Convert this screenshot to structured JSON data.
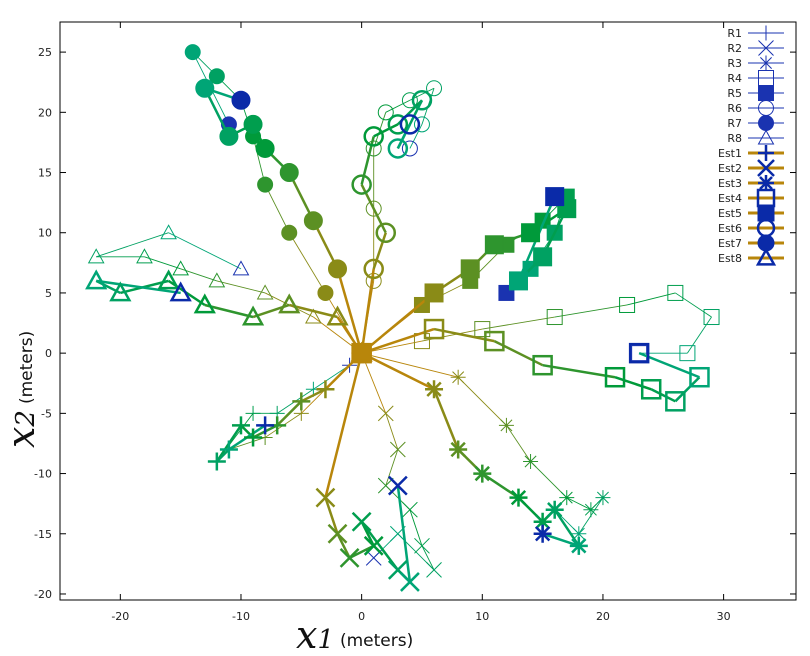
{
  "chart_data": {
    "type": "line",
    "title": "",
    "xlabel": {
      "symbol": "x",
      "subscript": "1",
      "unit": "(meters)"
    },
    "ylabel": {
      "symbol": "x",
      "subscript": "2",
      "unit": "(meters)"
    },
    "xlim": [
      -25,
      36
    ],
    "ylim": [
      -20.5,
      27.5
    ],
    "xticks": [
      -20,
      -10,
      0,
      10,
      20,
      30
    ],
    "yticks": [
      -20,
      -15,
      -10,
      -5,
      0,
      5,
      10,
      15,
      20,
      25
    ],
    "grid": false,
    "legend_position": "top-right",
    "colors": {
      "blue": "#1a33b0",
      "navy": "#0a2aa8",
      "gold": "#b8860b",
      "green": "#009a3a",
      "teal": "#00a88a"
    },
    "series": [
      {
        "name": "R1",
        "marker": "plus",
        "points": [
          [
            0,
            0
          ],
          [
            -5,
            -5
          ],
          [
            -8,
            -7
          ],
          [
            -11,
            -8
          ],
          [
            -12,
            -9
          ],
          [
            -9,
            -5
          ],
          [
            -7,
            -5
          ],
          [
            -4,
            -3
          ],
          [
            -1,
            -1
          ]
        ]
      },
      {
        "name": "R2",
        "marker": "x",
        "points": [
          [
            0,
            0
          ],
          [
            2,
            -5
          ],
          [
            3,
            -8
          ],
          [
            2,
            -11
          ],
          [
            4,
            -13
          ],
          [
            5,
            -16
          ],
          [
            6,
            -18
          ],
          [
            3,
            -15
          ],
          [
            1,
            -17
          ]
        ]
      },
      {
        "name": "R3",
        "marker": "star",
        "points": [
          [
            0,
            0
          ],
          [
            8,
            -2
          ],
          [
            12,
            -6
          ],
          [
            14,
            -9
          ],
          [
            17,
            -12
          ],
          [
            19,
            -13
          ],
          [
            20,
            -12
          ],
          [
            18,
            -15
          ],
          [
            16,
            -13
          ]
        ]
      },
      {
        "name": "R4",
        "marker": "square",
        "points": [
          [
            0,
            0
          ],
          [
            5,
            1
          ],
          [
            10,
            2
          ],
          [
            16,
            3
          ],
          [
            22,
            4
          ],
          [
            26,
            5
          ],
          [
            29,
            3
          ],
          [
            27,
            0
          ],
          [
            23,
            0
          ]
        ]
      },
      {
        "name": "R5",
        "marker": "filled-square",
        "points": [
          [
            0,
            0
          ],
          [
            5,
            4
          ],
          [
            9,
            6
          ],
          [
            12,
            9
          ],
          [
            15,
            11
          ],
          [
            17,
            13
          ],
          [
            16,
            10
          ],
          [
            14,
            7
          ],
          [
            12,
            5
          ]
        ]
      },
      {
        "name": "R6",
        "marker": "circle",
        "points": [
          [
            0,
            0
          ],
          [
            1,
            6
          ],
          [
            1,
            12
          ],
          [
            1,
            17
          ],
          [
            2,
            20
          ],
          [
            4,
            21
          ],
          [
            6,
            22
          ],
          [
            5,
            19
          ],
          [
            4,
            17
          ]
        ]
      },
      {
        "name": "R7",
        "marker": "filled-circle",
        "points": [
          [
            0,
            0
          ],
          [
            -3,
            5
          ],
          [
            -6,
            10
          ],
          [
            -8,
            14
          ],
          [
            -9,
            18
          ],
          [
            -10,
            21
          ],
          [
            -12,
            23
          ],
          [
            -14,
            25
          ],
          [
            -11,
            19
          ]
        ]
      },
      {
        "name": "R8",
        "marker": "triangle",
        "points": [
          [
            0,
            0
          ],
          [
            -4,
            3
          ],
          [
            -8,
            5
          ],
          [
            -12,
            6
          ],
          [
            -15,
            7
          ],
          [
            -18,
            8
          ],
          [
            -22,
            8
          ],
          [
            -16,
            10
          ],
          [
            -10,
            7
          ]
        ]
      },
      {
        "name": "Est1",
        "marker": "plus",
        "points": [
          [
            0,
            0
          ],
          [
            -3,
            -3
          ],
          [
            -5,
            -4
          ],
          [
            -7,
            -6
          ],
          [
            -9,
            -7
          ],
          [
            -10,
            -6
          ],
          [
            -12,
            -9
          ],
          [
            -11,
            -8
          ],
          [
            -8,
            -6
          ]
        ]
      },
      {
        "name": "Est2",
        "marker": "x",
        "points": [
          [
            0,
            0
          ],
          [
            -3,
            -12
          ],
          [
            -2,
            -15
          ],
          [
            -1,
            -17
          ],
          [
            1,
            -16
          ],
          [
            0,
            -14
          ],
          [
            3,
            -18
          ],
          [
            4,
            -19
          ],
          [
            3,
            -11
          ]
        ]
      },
      {
        "name": "Est3",
        "marker": "star",
        "points": [
          [
            0,
            0
          ],
          [
            6,
            -3
          ],
          [
            8,
            -8
          ],
          [
            10,
            -10
          ],
          [
            13,
            -12
          ],
          [
            15,
            -14
          ],
          [
            16,
            -13
          ],
          [
            18,
            -16
          ],
          [
            15,
            -15
          ]
        ]
      },
      {
        "name": "Est4",
        "marker": "square",
        "points": [
          [
            0,
            0
          ],
          [
            6,
            2
          ],
          [
            11,
            1
          ],
          [
            15,
            -1
          ],
          [
            21,
            -2
          ],
          [
            24,
            -3
          ],
          [
            26,
            -4
          ],
          [
            28,
            -2
          ],
          [
            23,
            0
          ]
        ]
      },
      {
        "name": "Est5",
        "marker": "filled-square",
        "points": [
          [
            0,
            0
          ],
          [
            6,
            5
          ],
          [
            9,
            7
          ],
          [
            11,
            9
          ],
          [
            14,
            10
          ],
          [
            17,
            12
          ],
          [
            15,
            8
          ],
          [
            13,
            6
          ],
          [
            16,
            13
          ]
        ]
      },
      {
        "name": "Est6",
        "marker": "circle",
        "points": [
          [
            0,
            0
          ],
          [
            1,
            7
          ],
          [
            2,
            10
          ],
          [
            0,
            14
          ],
          [
            1,
            18
          ],
          [
            3,
            19
          ],
          [
            5,
            21
          ],
          [
            3,
            17
          ],
          [
            4,
            19
          ]
        ]
      },
      {
        "name": "Est7",
        "marker": "filled-circle",
        "points": [
          [
            0,
            0
          ],
          [
            -2,
            7
          ],
          [
            -4,
            11
          ],
          [
            -6,
            15
          ],
          [
            -8,
            17
          ],
          [
            -9,
            19
          ],
          [
            -11,
            18
          ],
          [
            -13,
            22
          ],
          [
            -10,
            21
          ]
        ]
      },
      {
        "name": "Est8",
        "marker": "triangle",
        "points": [
          [
            0,
            0
          ],
          [
            -2,
            3
          ],
          [
            -6,
            4
          ],
          [
            -9,
            3
          ],
          [
            -13,
            4
          ],
          [
            -16,
            6
          ],
          [
            -20,
            5
          ],
          [
            -22,
            6
          ],
          [
            -15,
            5
          ]
        ]
      }
    ]
  }
}
